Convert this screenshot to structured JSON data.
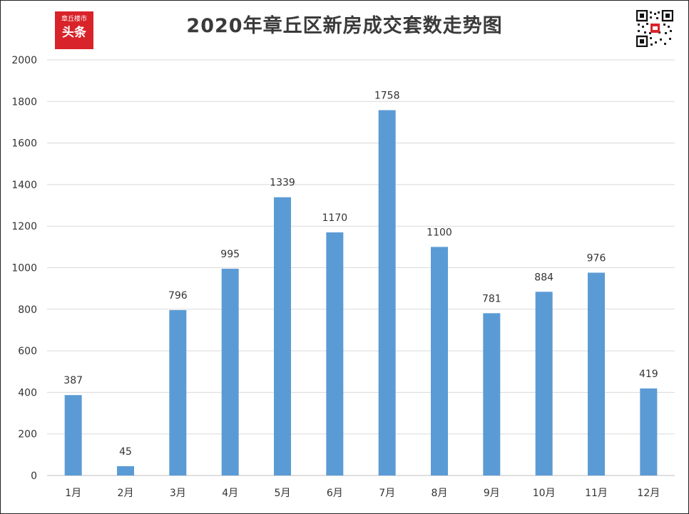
{
  "logo": {
    "line1": "章丘楼市",
    "line2": "头条"
  },
  "chart_data": {
    "type": "bar",
    "title": "2020年章丘区新房成交套数走势图",
    "xlabel": "",
    "ylabel": "",
    "categories": [
      "1月",
      "2月",
      "3月",
      "4月",
      "5月",
      "6月",
      "7月",
      "8月",
      "9月",
      "10月",
      "11月",
      "12月"
    ],
    "values": [
      387,
      45,
      796,
      995,
      1339,
      1170,
      1758,
      1100,
      781,
      884,
      976,
      419
    ],
    "ylim": [
      0,
      2000
    ],
    "yticks": [
      0,
      200,
      400,
      600,
      800,
      1000,
      1200,
      1400,
      1600,
      1800,
      2000
    ],
    "grid": true,
    "legend": "none",
    "bar_color": "#5b9bd5",
    "gridline_color": "#d9d9d9",
    "label_color": "#333333"
  },
  "icons": {
    "brand": "toutiao-logo-icon",
    "qr": "qr-code-icon"
  }
}
